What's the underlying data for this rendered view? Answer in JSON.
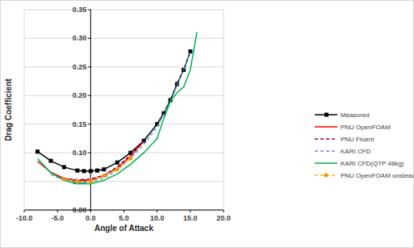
{
  "chart_data": {
    "type": "line",
    "x_label": "Angle of Attack",
    "y_label": "Drag Coefficient",
    "xlim": [
      -10,
      20
    ],
    "ylim": [
      0,
      0.35
    ],
    "xticks": [
      {
        "value": -10,
        "label": "-10.0"
      },
      {
        "value": -5,
        "label": "-5.0"
      },
      {
        "value": 0,
        "label": "0.0"
      },
      {
        "value": 5,
        "label": "5.0"
      },
      {
        "value": 10,
        "label": "10.0"
      },
      {
        "value": 15,
        "label": "15.0"
      },
      {
        "value": 20,
        "label": "20.0"
      }
    ],
    "yticks": [
      {
        "value": 0,
        "label": "0.00"
      },
      {
        "value": 0.05,
        "label": "0.05"
      },
      {
        "value": 0.1,
        "label": "0.10"
      },
      {
        "value": 0.15,
        "label": "0.15"
      },
      {
        "value": 0.2,
        "label": "0.20"
      },
      {
        "value": 0.25,
        "label": "0.25"
      },
      {
        "value": 0.3,
        "label": "0.30"
      },
      {
        "value": 0.35,
        "label": "0.35"
      }
    ],
    "grid": true,
    "legend": "right",
    "series": [
      {
        "name": "Measured",
        "color": "#000000",
        "marker": "square",
        "line_style": "solid",
        "x": [
          -8,
          -6,
          -4,
          -2,
          -1,
          0,
          1,
          2,
          4,
          6,
          8,
          10,
          11,
          12,
          13,
          14,
          15
        ],
        "values": [
          0.102,
          0.086,
          0.075,
          0.069,
          0.068,
          0.068,
          0.069,
          0.071,
          0.083,
          0.1,
          0.121,
          0.15,
          0.169,
          0.192,
          0.22,
          0.245,
          0.277
        ]
      },
      {
        "name": "PNU OpenFOAM",
        "color": "#ff0000",
        "marker": "none",
        "line_style": "solid",
        "x": [
          -8,
          -6,
          -4,
          -2,
          0,
          2,
          4,
          6,
          8
        ],
        "values": [
          0.085,
          0.066,
          0.055,
          0.051,
          0.052,
          0.06,
          0.073,
          0.094,
          0.12
        ]
      },
      {
        "name": "PNU Fluent",
        "color": "#a00030",
        "marker": "none",
        "line_style": "dashed",
        "x": [
          -4,
          -2,
          0,
          2,
          4,
          6,
          8
        ],
        "values": [
          0.055,
          0.053,
          0.054,
          0.061,
          0.075,
          0.096,
          0.121
        ]
      },
      {
        "name": "KARI CFD",
        "color": "#5b9bd5",
        "marker": "none",
        "line_style": "dashed",
        "x": [
          -6,
          -4,
          -2,
          0,
          2,
          4,
          6,
          8,
          10,
          12,
          14,
          15
        ],
        "values": [
          0.062,
          0.052,
          0.048,
          0.049,
          0.056,
          0.07,
          0.09,
          0.115,
          0.145,
          0.19,
          0.245,
          0.275
        ]
      },
      {
        "name": "KARI CFD(QTP 48kg)",
        "color": "#00b050",
        "marker": "none",
        "line_style": "solid",
        "x": [
          -8,
          -6,
          -4,
          -2,
          0,
          2,
          4,
          6,
          8,
          10,
          11,
          12,
          13,
          14,
          15,
          16
        ],
        "values": [
          0.09,
          0.065,
          0.052,
          0.046,
          0.046,
          0.052,
          0.063,
          0.08,
          0.1,
          0.125,
          0.16,
          0.19,
          0.205,
          0.215,
          0.245,
          0.311
        ]
      },
      {
        "name": "PNU OpenFOAM unsteady",
        "color": "#ffc000",
        "marker": "circle",
        "line_style": "dashed",
        "x": [
          -4,
          -2,
          0,
          2,
          4,
          6
        ],
        "values": [
          0.054,
          0.05,
          0.05,
          0.06,
          0.071,
          0.09
        ]
      }
    ]
  }
}
